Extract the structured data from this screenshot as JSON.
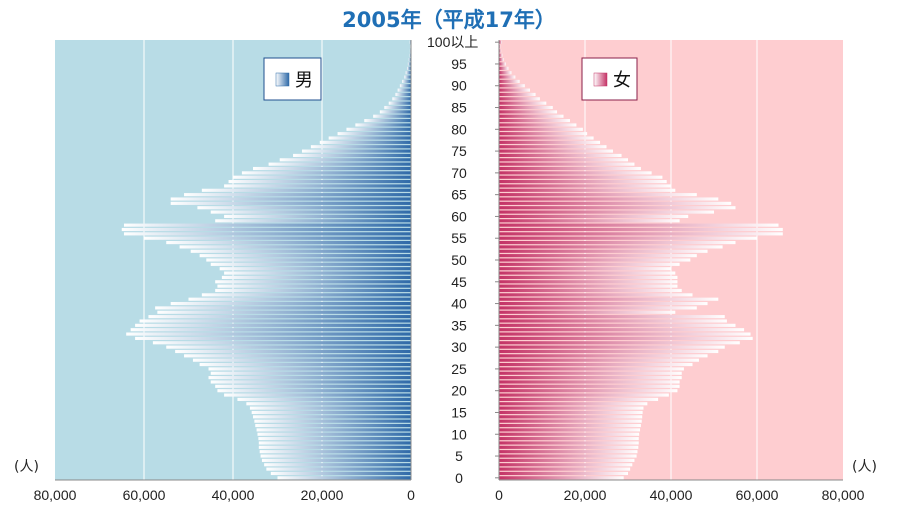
{
  "title": "2005年（平成17年）",
  "colors": {
    "male_bg": "#b8dce6",
    "female_bg": "#fecdd0",
    "male_bar": "#2f6aa8",
    "female_bar": "#c43366",
    "title": "#1f6fb5"
  },
  "chart_data": {
    "type": "bar",
    "orientation": "horizontal-population-pyramid",
    "title": "2005年（平成17年）",
    "y_axis": {
      "categories_note": "age 0 to 99, plus 100以上",
      "tick_labels": [
        "0",
        "5",
        "10",
        "15",
        "20",
        "25",
        "30",
        "35",
        "40",
        "45",
        "50",
        "55",
        "60",
        "65",
        "70",
        "75",
        "80",
        "85",
        "90",
        "95",
        "100以上"
      ]
    },
    "x_axis_male": {
      "ticks": [
        "80,000",
        "60,000",
        "40,000",
        "20,000",
        "0"
      ],
      "range": [
        80000,
        0
      ],
      "unit": "(人)"
    },
    "x_axis_female": {
      "ticks": [
        "0",
        "20,000",
        "40,000",
        "60,000",
        "80,000"
      ],
      "range": [
        0,
        80000
      ],
      "unit": "(人)"
    },
    "grid": true,
    "series": [
      {
        "name": "男",
        "values": [
          30000,
          31500,
          32500,
          33000,
          33500,
          33800,
          34000,
          34200,
          34200,
          34300,
          34500,
          34700,
          35000,
          35200,
          35500,
          35800,
          36200,
          37000,
          39000,
          42000,
          43500,
          44000,
          45000,
          45500,
          45000,
          45500,
          47500,
          49000,
          51000,
          53000,
          55000,
          58000,
          62000,
          64000,
          63000,
          62000,
          61000,
          59000,
          57000,
          57500,
          54000,
          50000,
          47000,
          44000,
          43500,
          44000,
          42500,
          42000,
          43000,
          45000,
          46000,
          47500,
          49500,
          52000,
          55000,
          60000,
          64500,
          65000,
          64500,
          44000,
          42000,
          45000,
          48000,
          54000,
          54000,
          51000,
          47000,
          42000,
          41000,
          40000,
          38000,
          35500,
          32000,
          29500,
          26500,
          24500,
          22500,
          20500,
          18500,
          16500,
          14500,
          12500,
          10500,
          8500,
          7000,
          6000,
          5000,
          4200,
          3500,
          3000,
          2500,
          2000,
          1500,
          1200,
          900,
          700,
          500,
          350,
          250,
          180,
          300
        ]
      },
      {
        "name": "女",
        "values": [
          29000,
          30000,
          30500,
          31000,
          31500,
          32000,
          32200,
          32400,
          32500,
          32500,
          32600,
          32800,
          33000,
          33200,
          33300,
          33400,
          33600,
          34500,
          37000,
          39500,
          41500,
          42000,
          42000,
          42500,
          42500,
          43000,
          45000,
          46500,
          48500,
          51000,
          52500,
          56000,
          59000,
          58500,
          57000,
          55000,
          53000,
          52500,
          41000,
          46000,
          48500,
          51000,
          45000,
          42500,
          41500,
          41500,
          41500,
          41000,
          40000,
          42000,
          44500,
          46000,
          48500,
          52000,
          55000,
          60000,
          66000,
          66000,
          65000,
          42000,
          44000,
          50000,
          55000,
          54000,
          51000,
          46000,
          41000,
          40000,
          39000,
          38000,
          35500,
          33000,
          31500,
          30000,
          28500,
          26500,
          25000,
          23500,
          22000,
          20500,
          19500,
          18000,
          16500,
          15000,
          13500,
          12500,
          11000,
          9500,
          8500,
          7200,
          6000,
          4800,
          3800,
          2900,
          2200,
          1600,
          1100,
          800,
          500,
          350,
          700
        ]
      }
    ],
    "legend": {
      "male": "男",
      "female": "女",
      "placement": "top-inside"
    }
  }
}
